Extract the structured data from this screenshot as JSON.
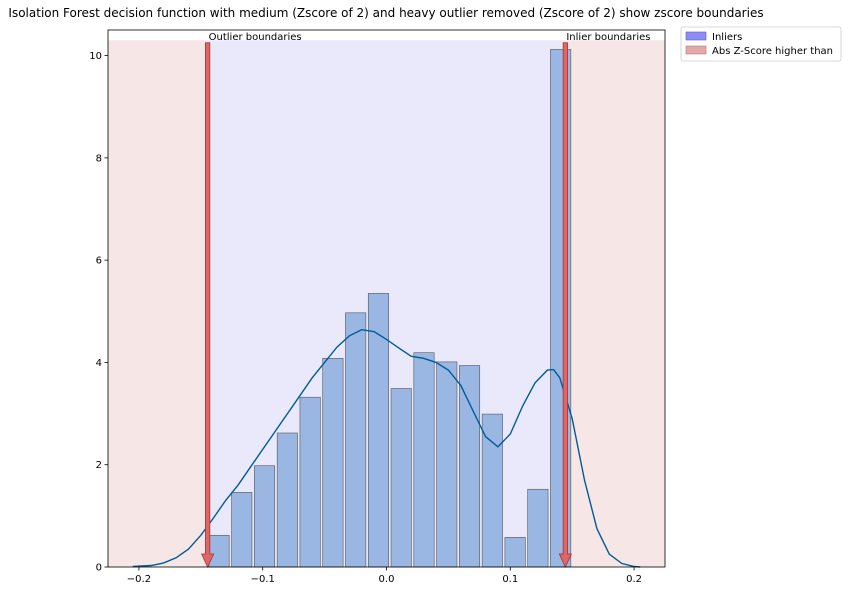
{
  "chart_data": {
    "type": "bar",
    "title": "Isolation Forest decision function with medium (Zscore of 2) and heavy outlier removed (Zscore of 2) show zscore boundaries",
    "xlabel": "",
    "ylabel": "",
    "xlim": [
      -0.225,
      0.225
    ],
    "ylim": [
      0,
      10.5
    ],
    "xticks": [
      -0.2,
      -0.1,
      0.0,
      0.1,
      0.2
    ],
    "xtick_labels": [
      "−0.2",
      "−0.1",
      "0.0",
      "0.1",
      "0.2"
    ],
    "yticks": [
      0,
      2,
      4,
      6,
      8,
      10
    ],
    "ytick_labels": [
      "0",
      "2",
      "4",
      "6",
      "8",
      "10"
    ],
    "grid": false,
    "legend_placement": "outside-top-right",
    "histogram": {
      "bin_start": -0.1445,
      "bin_width": 0.0184,
      "heights": [
        0.62,
        1.46,
        1.98,
        2.62,
        3.32,
        4.08,
        4.97,
        5.35,
        3.49,
        4.19,
        4.01,
        3.94,
        2.99,
        0.58,
        1.52,
        10.12
      ],
      "color": "#9ab7e3",
      "edge_color": "#555555"
    },
    "kde": {
      "x": [
        -0.205,
        -0.19,
        -0.18,
        -0.17,
        -0.16,
        -0.15,
        -0.14,
        -0.13,
        -0.12,
        -0.11,
        -0.1,
        -0.09,
        -0.08,
        -0.07,
        -0.06,
        -0.05,
        -0.04,
        -0.03,
        -0.02,
        -0.01,
        0.0,
        0.01,
        0.02,
        0.03,
        0.04,
        0.05,
        0.06,
        0.07,
        0.08,
        0.09,
        0.1,
        0.11,
        0.12,
        0.13,
        0.135,
        0.14,
        0.15,
        0.16,
        0.17,
        0.18,
        0.19,
        0.2,
        0.205
      ],
      "y": [
        0.01,
        0.03,
        0.08,
        0.18,
        0.35,
        0.62,
        0.95,
        1.3,
        1.6,
        1.95,
        2.3,
        2.65,
        3.0,
        3.35,
        3.7,
        4.0,
        4.3,
        4.52,
        4.64,
        4.6,
        4.45,
        4.28,
        4.12,
        4.08,
        4.0,
        3.85,
        3.55,
        3.05,
        2.55,
        2.35,
        2.6,
        3.15,
        3.6,
        3.85,
        3.86,
        3.7,
        2.9,
        1.7,
        0.75,
        0.25,
        0.07,
        0.01,
        0.0
      ],
      "color": "#005b96"
    },
    "regions": [
      {
        "name": "Inliers",
        "x0": -0.1445,
        "x1": 0.1445,
        "color": "#e9e9fb"
      },
      {
        "name": "Abs Z-Score higher than",
        "x0": -0.225,
        "x1": -0.1445,
        "color": "#f6e6e6"
      },
      {
        "name": "Abs Z-Score higher than",
        "x0": 0.1445,
        "x1": 0.225,
        "color": "#f6e6e6"
      }
    ],
    "region_top": 10.3,
    "arrows": [
      {
        "x": -0.1445,
        "y_top": 10.25,
        "label": "Outlier boundaries"
      },
      {
        "x": 0.1445,
        "y_top": 10.25,
        "label": "Inlier boundaries"
      }
    ],
    "arrow_fill": "#e06666",
    "arrow_edge": "#a33333",
    "legend": [
      {
        "label": "Inliers",
        "color": "#8c8cf7",
        "edge": "#5a5ad0"
      },
      {
        "label": "Abs Z-Score higher than",
        "color": "#e0aaaa",
        "edge": "#b07a7a"
      }
    ]
  }
}
